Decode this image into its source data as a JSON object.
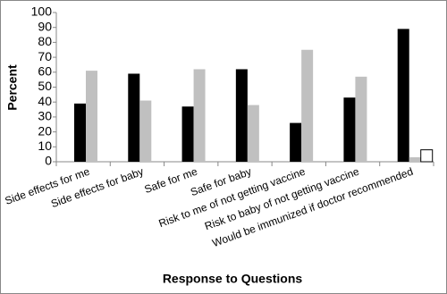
{
  "chart_data": {
    "type": "bar",
    "x_label": "Response to Questions",
    "y_label": "Percent",
    "categories": [
      "Side effects for me",
      "Side effects for baby",
      "Safe for me",
      "Safe for baby",
      "Risk to me of not getting vaccine",
      "Risk to baby of not getting vaccine",
      "Would be immunized if doctor recommended"
    ],
    "series": [
      {
        "color": "#000000",
        "values": [
          39,
          59,
          37,
          62,
          26,
          43,
          89
        ]
      },
      {
        "color": "#c0c0c0",
        "values": [
          61,
          41,
          62,
          38,
          75,
          57,
          3
        ]
      },
      {
        "color": "#ffffff",
        "values": [
          null,
          null,
          null,
          null,
          null,
          null,
          8
        ]
      }
    ],
    "ylim": [
      0,
      100
    ],
    "yticks": [
      0,
      10,
      20,
      30,
      40,
      50,
      60,
      70,
      80,
      90,
      100
    ],
    "grid": false
  }
}
